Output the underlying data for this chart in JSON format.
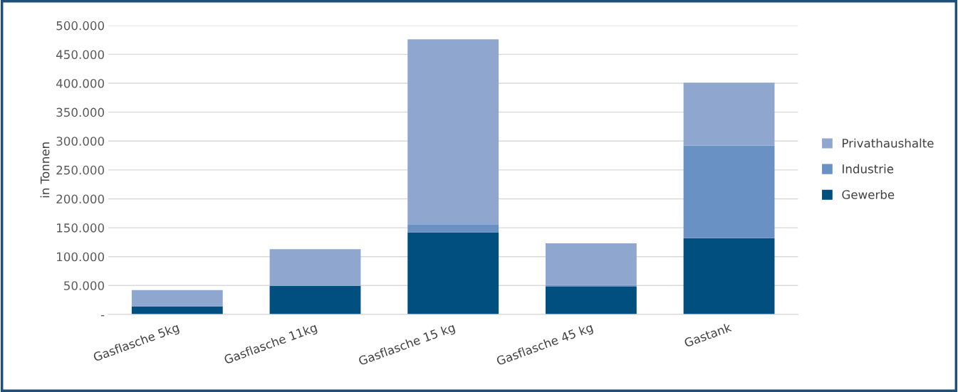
{
  "chart_data": {
    "type": "bar",
    "stacked": true,
    "ylabel": "in Tonnen",
    "categories": [
      "Gasflasche 5kg",
      "Gasflasche 11kg",
      "Gasflasche 15 kg",
      "Gasflasche 45 kg",
      "Gastank"
    ],
    "series": [
      {
        "name": "Gewerbe",
        "color": "#004f7f",
        "values": [
          13500,
          49000,
          142000,
          48000,
          132000
        ]
      },
      {
        "name": "Industrie",
        "color": "#6a91c4",
        "values": [
          0,
          0,
          14000,
          3000,
          160000
        ]
      },
      {
        "name": "Privathaushalte",
        "color": "#8fa7cf",
        "values": [
          28500,
          64000,
          320000,
          72000,
          109000
        ]
      }
    ],
    "ylim": [
      0,
      500000
    ],
    "yticks": [
      {
        "value": 0,
        "label": "-"
      },
      {
        "value": 50000,
        "label": "50.000"
      },
      {
        "value": 100000,
        "label": "100.000"
      },
      {
        "value": 150000,
        "label": "150.000"
      },
      {
        "value": 200000,
        "label": "200.000"
      },
      {
        "value": 250000,
        "label": "250.000"
      },
      {
        "value": 300000,
        "label": "300.000"
      },
      {
        "value": 350000,
        "label": "350.000"
      },
      {
        "value": 400000,
        "label": "400.000"
      },
      {
        "value": 450000,
        "label": "450.000"
      },
      {
        "value": 500000,
        "label": "500.000"
      }
    ],
    "grid": "y",
    "legend": "right"
  }
}
